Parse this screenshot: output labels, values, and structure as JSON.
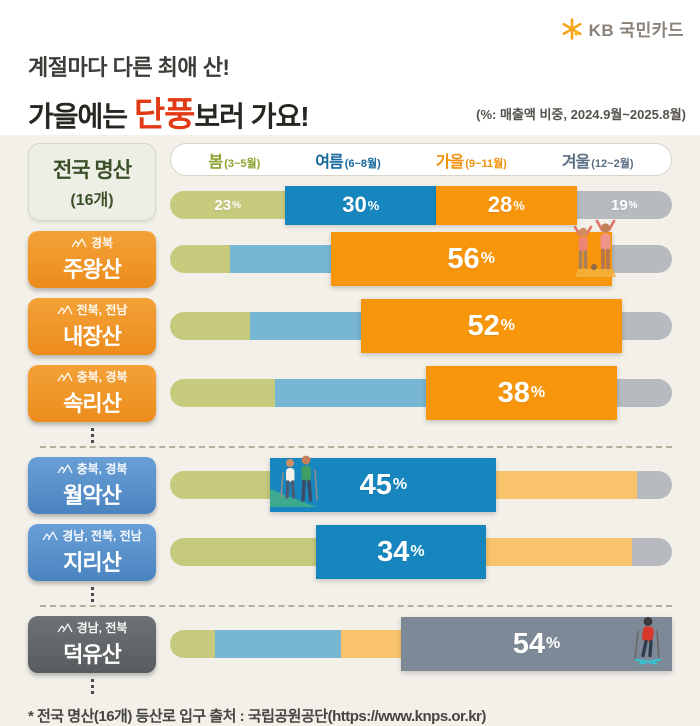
{
  "brand": {
    "name": "KB 국민카드"
  },
  "header": {
    "title_line1": "계절마다 다른 최애 산!",
    "title_line2_pre": "가을에는 ",
    "title_line2_highlight": "단풍",
    "title_line2_post": "보러 가요!",
    "subtitle": "(%: 매출액 비중, 2024.9월~2025.8월)"
  },
  "summary_label": {
    "title": "전국 명산",
    "subtitle": "(16개)"
  },
  "legend": {
    "items": [
      {
        "season": "봄",
        "months": "(3~5월)",
        "color": "#8ba32f"
      },
      {
        "season": "여름",
        "months": "(6~8월)",
        "color": "#15679c"
      },
      {
        "season": "가을",
        "months": "(9~11월)",
        "color": "#f0920e"
      },
      {
        "season": "겨울",
        "months": "(12~2월)",
        "color": "#5b6e84"
      }
    ]
  },
  "colors": {
    "spring": "#c6ca7d",
    "summer": "#1786be",
    "autumn": "#f7950b",
    "winter": "#b7bbbf",
    "summer_muted": "#78b7d4",
    "autumn_muted": "#f9c36b",
    "winter_emph": "#7d8997"
  },
  "chart_data": {
    "type": "bar",
    "stacked": true,
    "orientation": "horizontal",
    "unit": "%",
    "title": "계절마다 다른 최애 산! 가을에는 단풍보러 가요!",
    "note": "(%: 매출액 비중, 2024.9월~2025.8월)",
    "seasons": [
      "봄 (3~5월)",
      "여름 (6~8월)",
      "가을 (9~11월)",
      "겨울 (12~2월)"
    ],
    "summary_row": {
      "label": "전국 명산 (16개)",
      "values": [
        23,
        30,
        28,
        19
      ],
      "segments": [
        {
          "season": "spring",
          "pct": 23,
          "color": "spring",
          "label": "23",
          "size": "sm"
        },
        {
          "season": "summer",
          "pct": 30,
          "color": "summer",
          "label": "30",
          "size": "md",
          "emph": "mid"
        },
        {
          "season": "autumn",
          "pct": 28,
          "color": "autumn",
          "label": "28",
          "size": "md",
          "emph": "mid"
        },
        {
          "season": "winter",
          "pct": 19,
          "color": "winter",
          "label": "19",
          "size": "sm"
        }
      ]
    },
    "mountain_rows": [
      {
        "name": "주왕산",
        "region": "경북",
        "box": "orange",
        "peak_season": "가을",
        "peak_value": 56,
        "decoration": "hikers-cheering",
        "segments": [
          {
            "season": "spring",
            "pct": 12,
            "color": "spring"
          },
          {
            "season": "summer",
            "pct": 20,
            "color": "summer_muted"
          },
          {
            "season": "autumn",
            "pct": 56,
            "color": "autumn",
            "label": "56",
            "size": "big",
            "emph": "big"
          },
          {
            "season": "winter",
            "pct": 12,
            "color": "winter"
          }
        ]
      },
      {
        "name": "내장산",
        "region": "전북, 전남",
        "box": "orange",
        "peak_season": "가을",
        "peak_value": 52,
        "segments": [
          {
            "season": "spring",
            "pct": 16,
            "color": "spring"
          },
          {
            "season": "summer",
            "pct": 22,
            "color": "summer_muted"
          },
          {
            "season": "autumn",
            "pct": 52,
            "color": "autumn",
            "label": "52",
            "size": "big",
            "emph": "big"
          },
          {
            "season": "winter",
            "pct": 10,
            "color": "winter"
          }
        ]
      },
      {
        "name": "속리산",
        "region": "충북, 경북",
        "box": "orange",
        "peak_season": "가을",
        "peak_value": 38,
        "after": [
          "ellipsis",
          "divider"
        ],
        "segments": [
          {
            "season": "spring",
            "pct": 21,
            "color": "spring"
          },
          {
            "season": "summer",
            "pct": 30,
            "color": "summer_muted"
          },
          {
            "season": "autumn",
            "pct": 38,
            "color": "autumn",
            "label": "38",
            "size": "big",
            "emph": "big"
          },
          {
            "season": "winter",
            "pct": 11,
            "color": "winter"
          }
        ]
      },
      {
        "name": "월악산",
        "region": "충북, 경북",
        "box": "blue",
        "peak_season": "여름",
        "peak_value": 45,
        "decoration": "hikers-walking",
        "segments": [
          {
            "season": "spring",
            "pct": 20,
            "color": "spring"
          },
          {
            "season": "summer",
            "pct": 45,
            "color": "summer",
            "label": "45",
            "size": "big",
            "emph": "big"
          },
          {
            "season": "autumn",
            "pct": 28,
            "color": "autumn_muted"
          },
          {
            "season": "winter",
            "pct": 7,
            "color": "winter"
          }
        ]
      },
      {
        "name": "지리산",
        "region": "경남, 전북, 전남",
        "box": "blue",
        "peak_season": "여름",
        "peak_value": 34,
        "after": [
          "ellipsis",
          "divider"
        ],
        "segments": [
          {
            "season": "spring",
            "pct": 29,
            "color": "spring"
          },
          {
            "season": "summer",
            "pct": 34,
            "color": "summer",
            "label": "34",
            "size": "big",
            "emph": "big"
          },
          {
            "season": "autumn",
            "pct": 29,
            "color": "autumn_muted"
          },
          {
            "season": "winter",
            "pct": 8,
            "color": "winter"
          }
        ]
      },
      {
        "name": "덕유산",
        "region": "경남, 전북",
        "box": "gray",
        "peak_season": "겨울",
        "peak_value": 54,
        "decoration": "skier",
        "after": [
          "ellipsis"
        ],
        "segments": [
          {
            "season": "spring",
            "pct": 9,
            "color": "spring"
          },
          {
            "season": "summer",
            "pct": 25,
            "color": "summer_muted"
          },
          {
            "season": "autumn",
            "pct": 12,
            "color": "autumn_muted"
          },
          {
            "season": "winter",
            "pct": 54,
            "color": "winter_emph",
            "label": "54",
            "size": "big",
            "emph": "big"
          }
        ]
      }
    ]
  },
  "footer": {
    "note": "* 전국 명산(16개) 등산로 입구 출처 : 국립공원공단(https://www.knps.or.kr)"
  }
}
